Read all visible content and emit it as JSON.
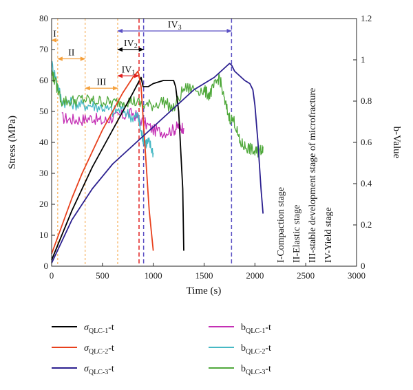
{
  "chart_data": {
    "type": "line",
    "xlabel": "Time (s)",
    "ylabel": "Stress (MPa)",
    "y2label": "b-Value",
    "xlim": [
      0,
      3000
    ],
    "ylim": [
      0,
      80
    ],
    "y2lim": [
      0,
      1.2
    ],
    "xticks": [
      "0",
      "500",
      "1000",
      "1500",
      "2000",
      "2500",
      "3000"
    ],
    "yticks": [
      "0",
      "10",
      "20",
      "30",
      "40",
      "50",
      "60",
      "70",
      "80"
    ],
    "y2ticks": [
      "0",
      "0.2",
      "0.4",
      "0.6",
      "0.8",
      "1",
      "1.2"
    ],
    "grid": false,
    "legend_position": "bottom",
    "colors": {
      "s1": "#000000",
      "s2": "#e8401c",
      "s3": "#2b1f8f",
      "b1": "#c42fb4",
      "b2": "#46b8c4",
      "b3": "#4fa83a",
      "orange": "#f5a03c",
      "purple": "#5a4fc4",
      "red": "#e02020"
    },
    "stress_series": [
      {
        "key": "s1",
        "name_main": "σ",
        "name_sub": "QLC-1",
        "name_suffix": "-t",
        "x": [
          0,
          100,
          200,
          300,
          400,
          500,
          600,
          700,
          800,
          880,
          900,
          950,
          1000,
          1050,
          1100,
          1150,
          1200,
          1220,
          1250,
          1290,
          1300
        ],
        "y": [
          2,
          10,
          18,
          25,
          32,
          38,
          44,
          50,
          56,
          61,
          58,
          58,
          59,
          59.5,
          60,
          60,
          60,
          58,
          50,
          25,
          5
        ]
      },
      {
        "key": "s2",
        "name_main": "σ",
        "name_sub": "QLC-2",
        "name_suffix": "-t",
        "x": [
          0,
          100,
          200,
          300,
          400,
          500,
          600,
          700,
          800,
          850,
          880,
          900,
          930,
          960,
          1000
        ],
        "y": [
          4,
          13,
          22,
          30,
          37,
          44,
          50,
          56,
          61,
          63,
          58,
          48,
          33,
          18,
          5
        ]
      },
      {
        "key": "s3",
        "name_main": "σ",
        "name_sub": "QLC-3",
        "name_suffix": "-t",
        "x": [
          0,
          100,
          200,
          400,
          600,
          800,
          1000,
          1100,
          1200,
          1300,
          1400,
          1500,
          1600,
          1700,
          1750,
          1770,
          1800,
          1900,
          1950,
          1980,
          2000,
          2030,
          2060,
          2080
        ],
        "y": [
          1,
          8,
          15,
          25,
          33,
          39,
          45,
          48,
          51,
          54,
          57,
          59,
          61,
          64,
          65.5,
          65,
          63,
          60,
          59,
          57,
          52,
          40,
          25,
          17
        ]
      }
    ],
    "bvalue_series": [
      {
        "key": "b1",
        "name_main": "b",
        "name_sub": "QLC-1",
        "name_suffix": "-t",
        "x": [
          100,
          200,
          300,
          400,
          500,
          600,
          700,
          800,
          900,
          1000,
          1100,
          1200,
          1250,
          1300
        ],
        "y": [
          0.72,
          0.71,
          0.71,
          0.72,
          0.7,
          0.72,
          0.73,
          0.74,
          0.7,
          0.66,
          0.65,
          0.66,
          0.68,
          0.67
        ]
      },
      {
        "key": "b2",
        "name_main": "b",
        "name_sub": "QLC-2",
        "name_suffix": "-t",
        "x": [
          0,
          50,
          100,
          200,
          300,
          400,
          500,
          600,
          700,
          800,
          850,
          880,
          900,
          930,
          960,
          1000
        ],
        "y": [
          0.98,
          0.9,
          0.8,
          0.79,
          0.78,
          0.78,
          0.77,
          0.75,
          0.76,
          0.72,
          0.73,
          0.65,
          0.62,
          0.6,
          0.6,
          0.55
        ]
      },
      {
        "key": "b3",
        "name_main": "b",
        "name_sub": "QLC-3",
        "name_suffix": "-t",
        "x": [
          0,
          30,
          100,
          200,
          300,
          400,
          500,
          600,
          700,
          800,
          900,
          1000,
          1100,
          1200,
          1300,
          1400,
          1500,
          1550,
          1600,
          1650,
          1700,
          1750,
          1800,
          1850,
          1900,
          1950,
          2000,
          2050,
          2080
        ],
        "y": [
          0.94,
          0.9,
          0.8,
          0.8,
          0.81,
          0.8,
          0.8,
          0.79,
          0.8,
          0.8,
          0.78,
          0.78,
          0.8,
          0.76,
          0.86,
          0.86,
          0.85,
          0.83,
          0.87,
          0.92,
          0.8,
          0.72,
          0.7,
          0.6,
          0.58,
          0.57,
          0.55,
          0.56,
          0.58
        ]
      }
    ],
    "stage_markers": [
      {
        "color": "orange",
        "x": 60
      },
      {
        "color": "orange",
        "x": 330
      },
      {
        "color": "orange",
        "x": 650
      },
      {
        "color": "red",
        "x": 860
      },
      {
        "color": "purple",
        "x": 905
      },
      {
        "color": "purple",
        "x": 1770
      }
    ],
    "stage_arrows": [
      {
        "label": "I",
        "sub": "",
        "color": "orange",
        "x_from": 60,
        "x_to": 0,
        "y": 73
      },
      {
        "label": "II",
        "sub": "",
        "color": "orange",
        "x_from": 60,
        "x_to": 330,
        "y": 67
      },
      {
        "label": "III",
        "sub": "",
        "color": "orange",
        "x_from": 330,
        "x_to": 650,
        "y": 57.5
      },
      {
        "label": "IV",
        "sub": "1",
        "color": "red",
        "x_from": 860,
        "x_to": 650,
        "y": 61.5
      },
      {
        "label": "IV",
        "sub": "2",
        "color": "black",
        "x_from": 905,
        "x_to": 650,
        "y": 70
      },
      {
        "label": "IV",
        "sub": "3",
        "color": "purple",
        "x_from": 1770,
        "x_to": 650,
        "y": 76
      }
    ],
    "stage_legend": [
      "I-Compaction stage",
      "II-Elastic stage",
      "III-stable development stage of microfracture",
      "IV-Yield stage"
    ]
  }
}
